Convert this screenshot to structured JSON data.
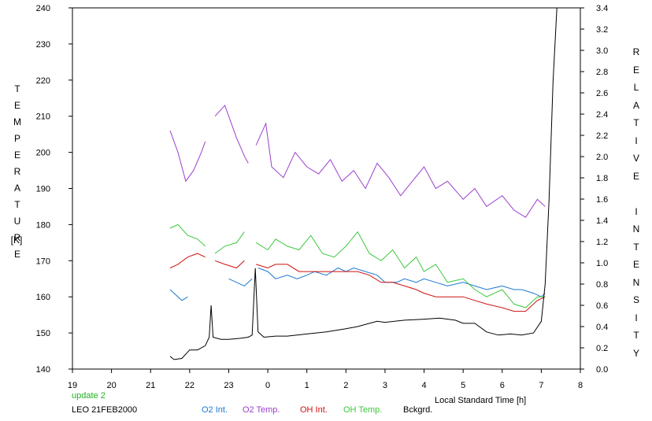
{
  "chart_data": {
    "type": "line",
    "left_axis_label_letters": [
      "T",
      "E",
      "M",
      "P",
      "E",
      "R",
      "A",
      "T",
      "U",
      "R",
      "E"
    ],
    "left_axis_unit": "[K]",
    "right_axis_label_letters": [
      "R",
      "E",
      "L",
      "A",
      "T",
      "I",
      "V",
      "E",
      "",
      "I",
      "N",
      "T",
      "E",
      "N",
      "S",
      "I",
      "T",
      "Y"
    ],
    "xlabel": "Local Standard Time [h]",
    "update_text": "update 2",
    "site_text": "LEO 21FEB2000",
    "x_ticks": [
      19,
      20,
      21,
      22,
      23,
      0,
      1,
      2,
      3,
      4,
      5,
      6,
      7,
      8
    ],
    "x_range_hours": [
      19,
      32
    ],
    "y_left_range": [
      140,
      240
    ],
    "y_left_ticks": [
      140,
      150,
      160,
      170,
      180,
      190,
      200,
      210,
      220,
      230,
      240
    ],
    "y_right_range": [
      0.0,
      3.4
    ],
    "y_right_ticks": [
      "0.0",
      "0.2",
      "0.4",
      "0.6",
      "0.8",
      "1.0",
      "1.2",
      "1.4",
      "1.6",
      "1.8",
      "2.0",
      "2.2",
      "2.4",
      "2.6",
      "2.8",
      "3.0",
      "3.2",
      "3.4"
    ],
    "series": [
      {
        "name": "O2 Int.",
        "axis": "left",
        "color": "#1e78d2",
        "points": [
          [
            21.5,
            162
          ],
          [
            21.6,
            161
          ],
          [
            21.8,
            159
          ],
          [
            21.95,
            160
          ],
          null,
          [
            23.0,
            165
          ],
          [
            23.2,
            164
          ],
          [
            23.4,
            163
          ],
          [
            23.6,
            165
          ],
          null,
          [
            23.75,
            168
          ],
          [
            24.0,
            167
          ],
          [
            24.2,
            165
          ],
          [
            24.5,
            166
          ],
          [
            24.75,
            165
          ],
          [
            25.0,
            166
          ],
          [
            25.2,
            167
          ],
          [
            25.5,
            166
          ],
          [
            25.8,
            168
          ],
          [
            26.0,
            167
          ],
          [
            26.2,
            168
          ],
          [
            26.5,
            167
          ],
          [
            26.8,
            166
          ],
          [
            27.0,
            164
          ],
          [
            27.3,
            164
          ],
          [
            27.5,
            165
          ],
          [
            27.8,
            164
          ],
          [
            28.0,
            165
          ],
          [
            28.3,
            164
          ],
          [
            28.6,
            163
          ],
          [
            29.0,
            164
          ],
          [
            29.3,
            163
          ],
          [
            29.6,
            162
          ],
          [
            30.0,
            163
          ],
          [
            30.3,
            162
          ],
          [
            30.5,
            162
          ],
          [
            30.8,
            161
          ],
          [
            31.0,
            160
          ],
          [
            31.1,
            161
          ]
        ]
      },
      {
        "name": "O2 Temp.",
        "axis": "left",
        "color": "#9b40cc",
        "points": [
          [
            21.5,
            206
          ],
          [
            21.7,
            200
          ],
          [
            21.9,
            192
          ],
          [
            22.1,
            195
          ],
          [
            22.3,
            200
          ],
          [
            22.4,
            203
          ],
          null,
          [
            22.65,
            210
          ],
          [
            22.9,
            213
          ],
          [
            23.2,
            204
          ],
          [
            23.4,
            199
          ],
          [
            23.5,
            197
          ],
          null,
          [
            23.7,
            202
          ],
          [
            23.95,
            208
          ],
          [
            24.1,
            196
          ],
          [
            24.4,
            193
          ],
          [
            24.7,
            200
          ],
          [
            25.0,
            196
          ],
          [
            25.3,
            194
          ],
          [
            25.6,
            198
          ],
          [
            25.9,
            192
          ],
          [
            26.2,
            195
          ],
          [
            26.5,
            190
          ],
          [
            26.8,
            197
          ],
          [
            27.1,
            193
          ],
          [
            27.4,
            188
          ],
          [
            27.7,
            192
          ],
          [
            28.0,
            196
          ],
          [
            28.3,
            190
          ],
          [
            28.6,
            192
          ],
          [
            29.0,
            187
          ],
          [
            29.3,
            190
          ],
          [
            29.6,
            185
          ],
          [
            30.0,
            188
          ],
          [
            30.3,
            184
          ],
          [
            30.6,
            182
          ],
          [
            30.9,
            187
          ],
          [
            31.1,
            185
          ]
        ]
      },
      {
        "name": "OH Int.",
        "axis": "left",
        "color": "#d01010",
        "points": [
          [
            21.5,
            168
          ],
          [
            21.7,
            169
          ],
          [
            21.95,
            171
          ],
          [
            22.2,
            172
          ],
          [
            22.4,
            171
          ],
          null,
          [
            22.65,
            170
          ],
          [
            22.9,
            169
          ],
          [
            23.2,
            168
          ],
          [
            23.4,
            170
          ],
          null,
          [
            23.7,
            169
          ],
          [
            24.0,
            168
          ],
          [
            24.2,
            169
          ],
          [
            24.5,
            169
          ],
          [
            24.8,
            167
          ],
          [
            25.1,
            167
          ],
          [
            25.4,
            167
          ],
          [
            25.7,
            167
          ],
          [
            26.0,
            167
          ],
          [
            26.3,
            167
          ],
          [
            26.6,
            166
          ],
          [
            26.9,
            164
          ],
          [
            27.2,
            164
          ],
          [
            27.5,
            163
          ],
          [
            27.8,
            162
          ],
          [
            28.0,
            161
          ],
          [
            28.3,
            160
          ],
          [
            28.6,
            160
          ],
          [
            29.0,
            160
          ],
          [
            29.3,
            159
          ],
          [
            29.6,
            158
          ],
          [
            30.0,
            157
          ],
          [
            30.3,
            156
          ],
          [
            30.6,
            156
          ],
          [
            30.9,
            159
          ],
          [
            31.1,
            160
          ]
        ]
      },
      {
        "name": "OH Temp.",
        "axis": "left",
        "color": "#3cc83c",
        "points": [
          [
            21.5,
            179
          ],
          [
            21.7,
            180
          ],
          [
            21.95,
            177
          ],
          [
            22.2,
            176
          ],
          [
            22.4,
            174
          ],
          null,
          [
            22.65,
            172
          ],
          [
            22.9,
            174
          ],
          [
            23.2,
            175
          ],
          [
            23.4,
            178
          ],
          null,
          [
            23.7,
            175
          ],
          [
            24.0,
            173
          ],
          [
            24.2,
            176
          ],
          [
            24.5,
            174
          ],
          [
            24.8,
            173
          ],
          [
            25.1,
            177
          ],
          [
            25.4,
            172
          ],
          [
            25.7,
            171
          ],
          [
            26.0,
            174
          ],
          [
            26.3,
            178
          ],
          [
            26.6,
            172
          ],
          [
            26.9,
            170
          ],
          [
            27.2,
            173
          ],
          [
            27.5,
            168
          ],
          [
            27.8,
            171
          ],
          [
            28.0,
            167
          ],
          [
            28.3,
            169
          ],
          [
            28.6,
            164
          ],
          [
            29.0,
            165
          ],
          [
            29.3,
            162
          ],
          [
            29.6,
            160
          ],
          [
            30.0,
            162
          ],
          [
            30.3,
            158
          ],
          [
            30.6,
            157
          ],
          [
            30.9,
            160
          ],
          [
            31.1,
            160
          ]
        ]
      },
      {
        "name": "Bckgrd.",
        "axis": "right",
        "color": "#000000",
        "points": [
          [
            21.5,
            0.12
          ],
          [
            21.6,
            0.09
          ],
          [
            21.8,
            0.1
          ],
          [
            22.0,
            0.18
          ],
          [
            22.2,
            0.18
          ],
          [
            22.4,
            0.22
          ],
          [
            22.5,
            0.3
          ],
          [
            22.55,
            0.6
          ],
          [
            22.6,
            0.3
          ],
          [
            22.8,
            0.28
          ],
          [
            23.0,
            0.28
          ],
          [
            23.3,
            0.29
          ],
          [
            23.5,
            0.3
          ],
          [
            23.6,
            0.32
          ],
          [
            23.68,
            0.95
          ],
          [
            23.75,
            0.35
          ],
          [
            23.9,
            0.3
          ],
          [
            24.2,
            0.31
          ],
          [
            24.5,
            0.31
          ],
          [
            25.0,
            0.33
          ],
          [
            25.5,
            0.35
          ],
          [
            26.0,
            0.38
          ],
          [
            26.3,
            0.4
          ],
          [
            26.6,
            0.43
          ],
          [
            26.8,
            0.45
          ],
          [
            27.0,
            0.44
          ],
          [
            27.5,
            0.46
          ],
          [
            28.0,
            0.47
          ],
          [
            28.4,
            0.48
          ],
          [
            28.8,
            0.46
          ],
          [
            29.0,
            0.43
          ],
          [
            29.3,
            0.43
          ],
          [
            29.6,
            0.35
          ],
          [
            29.9,
            0.32
          ],
          [
            30.2,
            0.33
          ],
          [
            30.5,
            0.32
          ],
          [
            30.8,
            0.34
          ],
          [
            31.0,
            0.45
          ],
          [
            31.1,
            0.8
          ],
          [
            31.2,
            1.6
          ],
          [
            31.3,
            2.7
          ],
          [
            31.4,
            3.4
          ]
        ]
      }
    ],
    "legend_placement": "bottom",
    "grid": false
  }
}
